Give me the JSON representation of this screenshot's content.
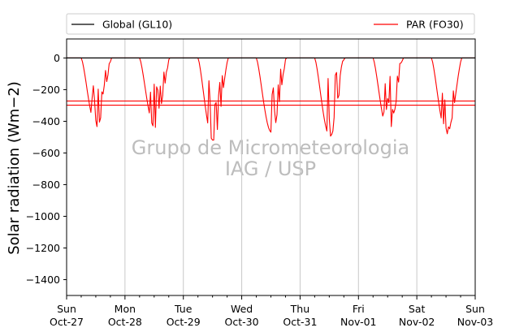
{
  "chart_data": {
    "type": "line",
    "ylabel": "Solar radiation ($Wm−2$)",
    "ylabel_display": "Solar radiation (Wm−2)",
    "ylim": [
      -1500,
      120
    ],
    "yticks": [
      0,
      -200,
      -400,
      -600,
      -800,
      -1000,
      -1200,
      -1400
    ],
    "ytick_labels": [
      "0",
      "−200",
      "−400",
      "−600",
      "−800",
      "−1000",
      "−1200",
      "−1400"
    ],
    "xlim": [
      "2019-10-27",
      "2019-11-03"
    ],
    "xticks": [
      {
        "day": "Sun",
        "date": "Oct-27"
      },
      {
        "day": "Mon",
        "date": "Oct-28"
      },
      {
        "day": "Tue",
        "date": "Oct-29"
      },
      {
        "day": "Wed",
        "date": "Oct-30"
      },
      {
        "day": "Thu",
        "date": "Oct-31"
      },
      {
        "day": "Fri",
        "date": "Nov-01"
      },
      {
        "day": "Sat",
        "date": "Nov-02"
      },
      {
        "day": "Sun",
        "date": "Nov-03"
      }
    ],
    "grid": "x-major",
    "legend": {
      "placement": "top",
      "columns": 2
    },
    "series": [
      {
        "name": "Global (GL10)",
        "color": "#000000",
        "constant": 0
      },
      {
        "name": "PAR (FO30)",
        "color": "#ff0000",
        "daily_minimum": [
          -435,
          -440,
          -520,
          -470,
          -495,
          -465,
          -480
        ],
        "horizontal_lines": [
          -272,
          -298
        ]
      }
    ],
    "watermark": [
      "Grupo de Micrometeorologia",
      "IAG / USP"
    ]
  }
}
